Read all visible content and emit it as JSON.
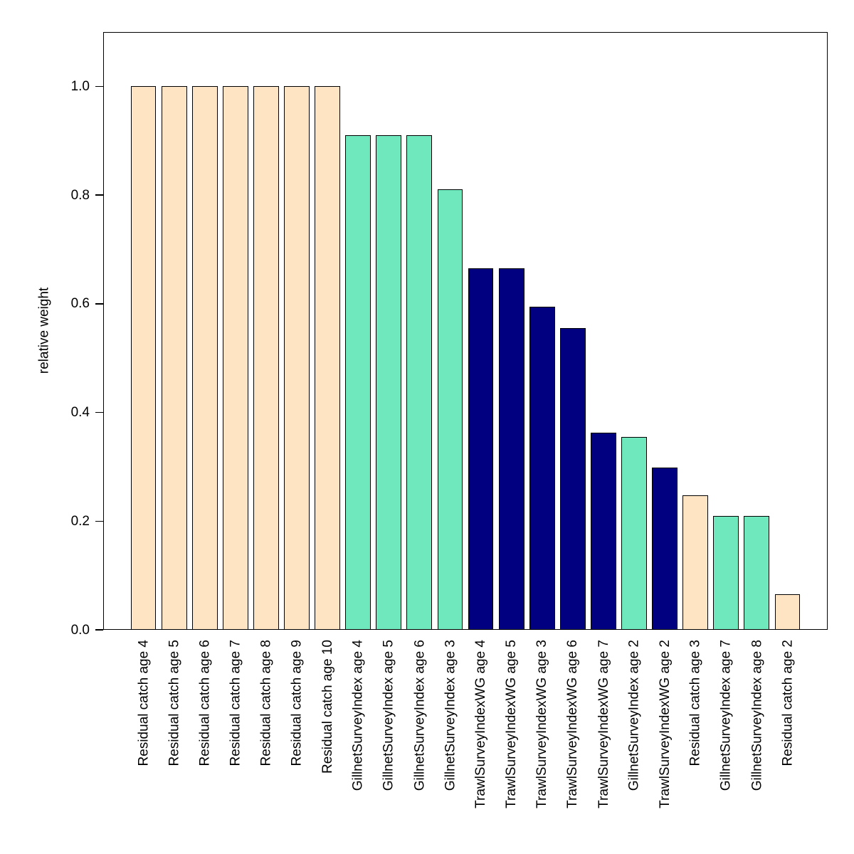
{
  "chart_data": {
    "type": "bar",
    "title": "",
    "xlabel": "",
    "ylabel": "relative weight",
    "ylim": [
      0,
      1.1
    ],
    "grid": false,
    "legend": "none",
    "yticks": [
      0.0,
      0.2,
      0.4,
      0.6,
      0.8,
      1.0
    ],
    "ytick_labels": [
      "0.0",
      "0.2",
      "0.4",
      "0.6",
      "0.8",
      "1.0"
    ],
    "categories": [
      "Residual catch age 4",
      "Residual catch age 5",
      "Residual catch age 6",
      "Residual catch age 7",
      "Residual catch age 8",
      "Residual catch age 9",
      "Residual catch age 10",
      "GillnetSurveyIndex age 4",
      "GillnetSurveyIndex age 5",
      "GillnetSurveyIndex age 6",
      "GillnetSurveyIndex age 3",
      "TrawlSurveyIndexWG age 4",
      "TrawlSurveyIndexWG age 5",
      "TrawlSurveyIndexWG age 3",
      "TrawlSurveyIndexWG age 6",
      "TrawlSurveyIndexWG age 7",
      "GillnetSurveyIndex age 2",
      "TrawlSurveyIndexWG age 2",
      "Residual catch age 3",
      "GillnetSurveyIndex age 7",
      "GillnetSurveyIndex age 8",
      "Residual catch age 2"
    ],
    "values": [
      1.0,
      1.0,
      1.0,
      1.0,
      1.0,
      1.0,
      1.0,
      0.91,
      0.91,
      0.91,
      0.81,
      0.665,
      0.665,
      0.595,
      0.555,
      0.363,
      0.355,
      0.298,
      0.248,
      0.21,
      0.21,
      0.065
    ],
    "bar_colors": [
      "#FFE4C4",
      "#FFE4C4",
      "#FFE4C4",
      "#FFE4C4",
      "#FFE4C4",
      "#FFE4C4",
      "#FFE4C4",
      "#70E8BE",
      "#70E8BE",
      "#70E8BE",
      "#70E8BE",
      "#000080",
      "#000080",
      "#000080",
      "#000080",
      "#000080",
      "#70E8BE",
      "#000080",
      "#FFE4C4",
      "#70E8BE",
      "#70E8BE",
      "#FFE4C4"
    ],
    "group_colors": {
      "Residual catch": "#FFE4C4",
      "GillnetSurveyIndex": "#70E8BE",
      "TrawlSurveyIndexWG": "#000080"
    },
    "bar_border_color": "#000000"
  }
}
